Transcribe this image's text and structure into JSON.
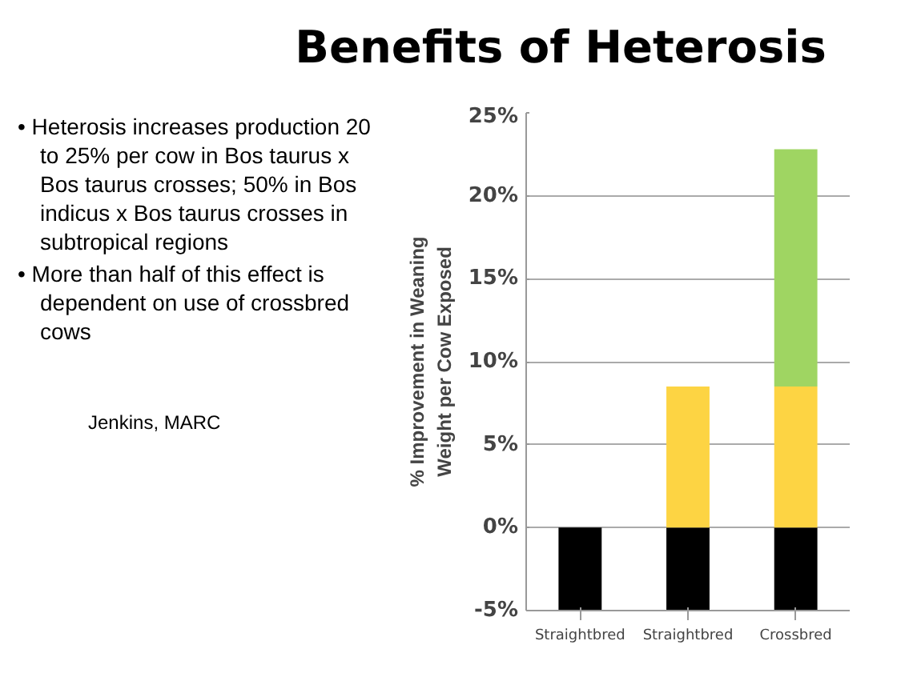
{
  "chart_data": {
    "type": "bar",
    "title": "Benefits of Heterosis",
    "ylabel": "% Improvement in Weaning\nWeight per Cow Exposed",
    "categories": [
      "Straightbred",
      "Straightbred",
      "Crossbred"
    ],
    "stacked": true,
    "series": [
      {
        "color": "#000000",
        "values": [
          -5,
          -5,
          -5
        ]
      },
      {
        "color": "#fdd443",
        "values": [
          0,
          8.5,
          8.5
        ]
      },
      {
        "color": "#9fd562",
        "values": [
          0,
          0,
          14.3
        ]
      }
    ],
    "ylim": [
      -5,
      25
    ],
    "yticks": [
      {
        "value": -5,
        "label": "-5%"
      },
      {
        "value": 0,
        "label": "0%"
      },
      {
        "value": 5,
        "label": "5%"
      },
      {
        "value": 10,
        "label": "10%"
      },
      {
        "value": 15,
        "label": "15%"
      },
      {
        "value": 20,
        "label": "20%"
      },
      {
        "value": 25,
        "label": "25%"
      }
    ],
    "grid": "y",
    "annotations": [
      "• Heterosis increases production 20 to 25% per cow in Bos taurus x Bos taurus crosses; 50% in Bos indicus x Bos taurus crosses in subtropical regions",
      "• More than half of this effect is dependent on use of crossbred cows",
      "Jenkins, MARC"
    ]
  }
}
